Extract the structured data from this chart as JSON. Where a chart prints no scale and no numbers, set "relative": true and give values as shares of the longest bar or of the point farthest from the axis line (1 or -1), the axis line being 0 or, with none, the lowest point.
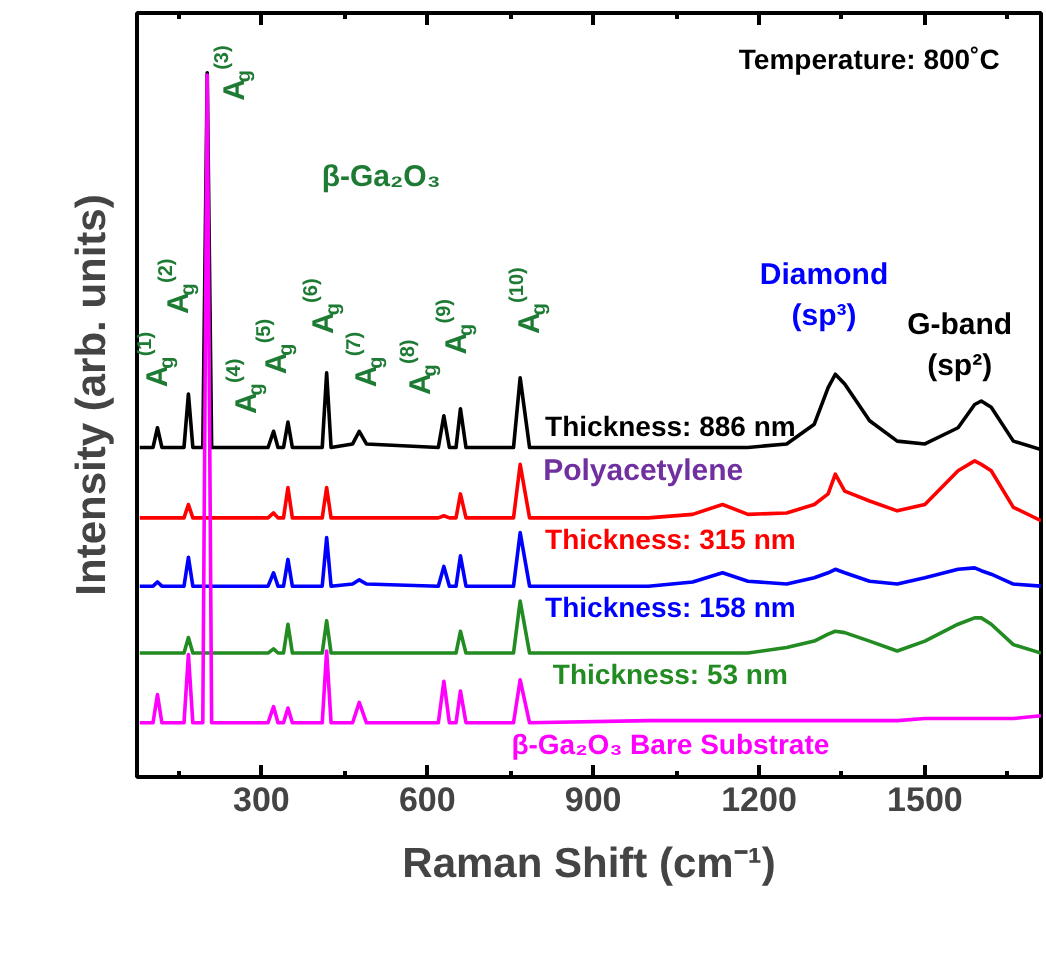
{
  "chart_data": {
    "type": "line",
    "relative": true,
    "xlabel": "Raman Shift (cm⁻¹)",
    "ylabel": "Intensity (arb. units)",
    "xlim": [
      75,
      1710
    ],
    "xticks": [
      {
        "value": 150,
        "label": null
      },
      300,
      {
        "value": 450,
        "label": null
      },
      600,
      {
        "value": 750,
        "label": null
      },
      900,
      {
        "value": 1050,
        "label": null
      },
      1200,
      {
        "value": 1350,
        "label": null
      },
      1500,
      {
        "value": 1650,
        "label": null
      }
    ],
    "tick_labels": "x",
    "grid": false,
    "line_style": "solid",
    "x": [
      80,
      104,
      112,
      120,
      160,
      168,
      176,
      194,
      202,
      210,
      312,
      322,
      330,
      340,
      348,
      356,
      410,
      418,
      426,
      465,
      477,
      490,
      620,
      630,
      640,
      652,
      660,
      670,
      756,
      768,
      785,
      1000,
      1080,
      1134,
      1180,
      1250,
      1300,
      1325,
      1338,
      1355,
      1400,
      1450,
      1500,
      1560,
      1590,
      1602,
      1620,
      1660,
      1710
    ],
    "series": [
      {
        "name": "Thickness: 886 nm",
        "color": "#000000",
        "values": [
          0.468,
          0.468,
          0.496,
          0.468,
          0.468,
          0.544,
          0.468,
          0.468,
          1.0,
          0.468,
          0.468,
          0.491,
          0.468,
          0.468,
          0.504,
          0.468,
          0.468,
          0.574,
          0.468,
          0.473,
          0.491,
          0.473,
          0.468,
          0.513,
          0.468,
          0.468,
          0.523,
          0.468,
          0.468,
          0.567,
          0.468,
          0.468,
          0.468,
          0.468,
          0.468,
          0.473,
          0.501,
          0.553,
          0.572,
          0.558,
          0.506,
          0.477,
          0.473,
          0.496,
          0.529,
          0.534,
          0.525,
          0.477,
          0.465
        ]
      },
      {
        "name": "Thickness: 315 nm",
        "color": "#ff0000",
        "values": [
          0.368,
          0.368,
          0.368,
          0.368,
          0.368,
          0.387,
          0.368,
          0.368,
          0.368,
          0.368,
          0.368,
          0.375,
          0.368,
          0.368,
          0.411,
          0.368,
          0.368,
          0.411,
          0.368,
          0.368,
          0.368,
          0.368,
          0.368,
          0.371,
          0.368,
          0.368,
          0.402,
          0.368,
          0.368,
          0.444,
          0.368,
          0.368,
          0.373,
          0.387,
          0.373,
          0.375,
          0.387,
          0.402,
          0.43,
          0.406,
          0.392,
          0.378,
          0.387,
          0.435,
          0.449,
          0.444,
          0.435,
          0.383,
          0.364
        ]
      },
      {
        "name": "Thickness: 158 nm",
        "color": "#0000ff",
        "values": [
          0.271,
          0.271,
          0.277,
          0.271,
          0.271,
          0.312,
          0.271,
          0.271,
          0.271,
          0.271,
          0.271,
          0.29,
          0.271,
          0.271,
          0.309,
          0.271,
          0.271,
          0.34,
          0.271,
          0.274,
          0.28,
          0.274,
          0.271,
          0.299,
          0.271,
          0.271,
          0.314,
          0.271,
          0.271,
          0.347,
          0.271,
          0.271,
          0.277,
          0.29,
          0.278,
          0.274,
          0.283,
          0.29,
          0.295,
          0.29,
          0.278,
          0.274,
          0.283,
          0.295,
          0.297,
          0.293,
          0.288,
          0.274,
          0.271
        ]
      },
      {
        "name": "Thickness: 53 nm",
        "color": "#228b22",
        "values": [
          0.176,
          0.176,
          0.176,
          0.176,
          0.176,
          0.198,
          0.176,
          0.176,
          0.176,
          0.176,
          0.176,
          0.182,
          0.176,
          0.176,
          0.217,
          0.176,
          0.176,
          0.222,
          0.176,
          0.176,
          0.176,
          0.176,
          0.176,
          0.176,
          0.176,
          0.176,
          0.207,
          0.176,
          0.176,
          0.25,
          0.176,
          0.176,
          0.176,
          0.176,
          0.176,
          0.184,
          0.193,
          0.203,
          0.207,
          0.205,
          0.193,
          0.179,
          0.193,
          0.217,
          0.226,
          0.226,
          0.217,
          0.188,
          0.176
        ]
      },
      {
        "name": "β-Ga₂O₃ Bare Substrate",
        "color": "#ff00ff",
        "values": [
          0.077,
          0.077,
          0.117,
          0.077,
          0.077,
          0.174,
          0.077,
          0.077,
          0.997,
          0.077,
          0.077,
          0.1,
          0.077,
          0.077,
          0.098,
          0.077,
          0.077,
          0.179,
          0.077,
          0.077,
          0.106,
          0.077,
          0.077,
          0.136,
          0.077,
          0.077,
          0.122,
          0.077,
          0.077,
          0.138,
          0.077,
          0.08,
          0.08,
          0.08,
          0.08,
          0.08,
          0.08,
          0.08,
          0.08,
          0.08,
          0.08,
          0.08,
          0.083,
          0.083,
          0.083,
          0.083,
          0.083,
          0.083,
          0.087
        ]
      }
    ],
    "annotations": [
      "A$_{g}$$^{(1)}$",
      "A$_{g}$$^{(2)}$",
      "A$_{g}$$^{(3)}$",
      "A$_{g}$$^{(4)}$",
      "A$_{g}$$^{(5)}$",
      "A$_{g}$$^{(6)}$",
      "A$_{g}$$^{(7)}$",
      "A$_{g}$$^{(8)}$",
      "A$_{g}$$^{(9)}$",
      "A$_{g}$$^{(10)}$",
      "Temperature: 800˚C",
      "β-Ga₂O₃",
      "Diamond\n(sp³)",
      "G-band\n(sp²)",
      "Polyacetylene"
    ]
  }
}
